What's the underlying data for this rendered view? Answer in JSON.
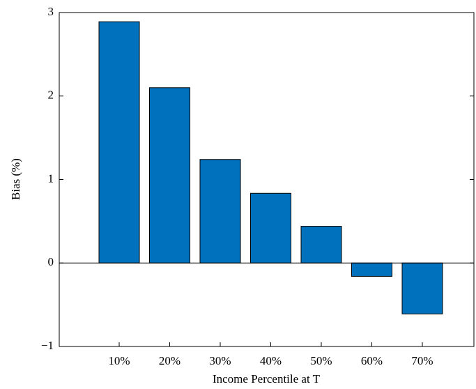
{
  "chart_data": {
    "type": "bar",
    "xlabel": "Income Percentile at T",
    "ylabel": "Bias (%)",
    "categories": [
      "10%",
      "20%",
      "30%",
      "40%",
      "50%",
      "60%",
      "70%"
    ],
    "values": [
      2.89,
      2.1,
      1.24,
      0.835,
      0.44,
      -0.16,
      -0.61
    ],
    "color": "#0072bd",
    "ylim": [
      -1,
      3
    ],
    "yticks": [
      {
        "value": -1,
        "label": "−1"
      },
      0,
      1,
      2,
      3
    ]
  }
}
